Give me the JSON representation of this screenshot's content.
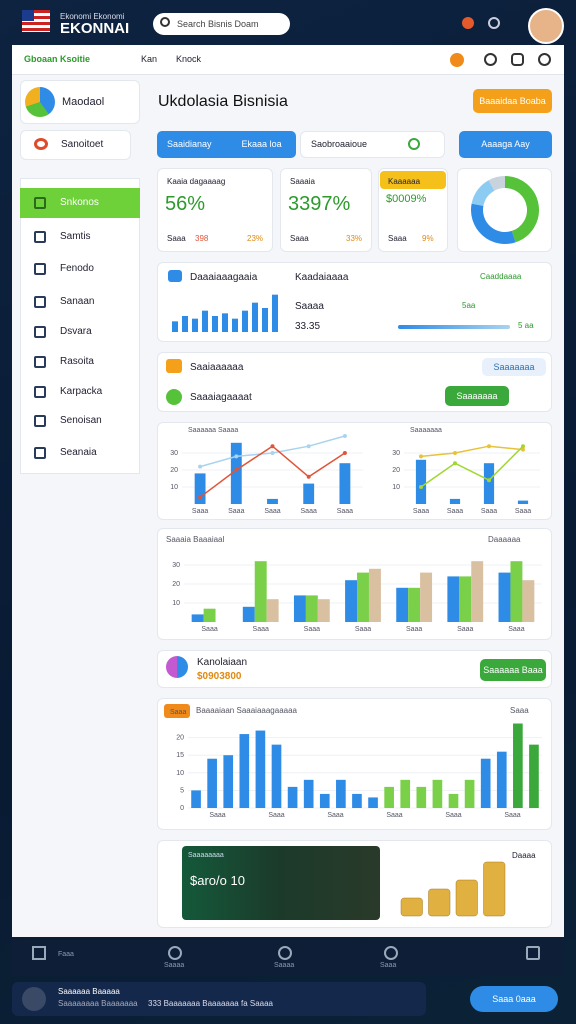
{
  "header": {
    "brand_top": "Ekonomi Ekonomi",
    "brand": "EKONNAI",
    "search": "Search Bisnis Doam"
  },
  "tabs": [
    "Gboaan Ksoitie",
    "Kan",
    "Knock"
  ],
  "sidebar": {
    "brand": "Maodaol",
    "account": "Sanoitoet",
    "menu": [
      "Snkonos",
      "Samtis",
      "Fenodo",
      "Sanaan",
      "Dsvara",
      "Rasoita",
      "Karpacka",
      "Senoisan",
      "Seanaia"
    ]
  },
  "main": {
    "title": "Ukdolasia Bisnisia",
    "action": "Baaaidaa Boaba",
    "tab": "Saaidianay",
    "tab_right": "Ekaaa loa",
    "search": "Saobroaaioue",
    "button": "Aaaaga Aay"
  },
  "stats": [
    {
      "label": "Kaaia dagaaaag",
      "value": "56%",
      "foot": "Saaa",
      "a": "398",
      "b": "23%"
    },
    {
      "label": "Saaaia",
      "value": "3397%",
      "foot": "Saaa",
      "a": "",
      "b": "33%"
    },
    {
      "label": "Kaaaaaa",
      "value": "$0009%",
      "foot": "Saaa",
      "a": "",
      "b": "9%"
    }
  ],
  "donut": {
    "type": "pie",
    "values": [
      45,
      33,
      14,
      8
    ],
    "colors": [
      "#56c23a",
      "#2e8be6",
      "#8ccbf2",
      "#c8d3de"
    ]
  },
  "overview": {
    "title": "Daaaiaaagaaia",
    "subtitle": "Kaadaiaaaa",
    "row1": "Saaaa",
    "row2": "33.35",
    "right": "Caaddaaaa",
    "right_value": "5aa",
    "progress_value": "5 aa",
    "chart": {
      "type": "bar",
      "values": [
        4,
        6,
        5,
        8,
        6,
        7,
        5,
        8,
        11,
        9,
        14
      ],
      "ylim": [
        0,
        15
      ],
      "color": "#2e8be6"
    }
  },
  "list": {
    "row1": "Saaiaaaaaa",
    "row1_button": "Saaaaaaa",
    "row2": "Saaaiagaaaat",
    "row2_button": "Saaaaaaa"
  },
  "combo": [
    {
      "type": "bar",
      "title": "Saaaaaa Saaaa",
      "ylim": [
        0,
        40
      ],
      "yticks": [
        10,
        20,
        30
      ],
      "values": [
        18,
        36,
        3,
        12,
        24
      ],
      "line": [
        4,
        20,
        34,
        16,
        30
      ],
      "trend": [
        22,
        28,
        30,
        34,
        40
      ],
      "color": "#2e8be6",
      "line_color": "#e0553a",
      "trend_color": "#a9d3ee",
      "categories": [
        "Saaa",
        "Saaa",
        "Saaa",
        "Saaa",
        "Saaa"
      ]
    },
    {
      "type": "bar",
      "title": "Saaaaaaa",
      "ylim": [
        0,
        40
      ],
      "yticks": [
        10,
        20,
        30
      ],
      "values": [
        26,
        3,
        24,
        2
      ],
      "line": [
        10,
        24,
        14,
        34
      ],
      "trend": [
        28,
        30,
        34,
        32
      ],
      "color": "#2e8be6",
      "line_color": "#a3d630",
      "trend_color": "#e8c23a",
      "categories": [
        "Saaa",
        "Saaa",
        "Saaa",
        "Saaa"
      ]
    }
  ],
  "grouped": {
    "type": "bar",
    "title": "Saaaia Baaaiaal",
    "right": "Daaaaaa",
    "ylim": [
      0,
      40
    ],
    "yticks": [
      10,
      20,
      30
    ],
    "categories": [
      "Saaa",
      "Saaa",
      "Saaa",
      "Saaa",
      "Saaa",
      "Saaa",
      "Saaa"
    ],
    "series": [
      {
        "color": "#2e8be6",
        "values": [
          4,
          8,
          14,
          22,
          18,
          24,
          26
        ]
      },
      {
        "color": "#7ad048",
        "values": [
          7,
          32,
          14,
          26,
          18,
          24,
          32
        ]
      },
      {
        "color": "#d8c0a0",
        "values": [
          0,
          12,
          12,
          28,
          26,
          32,
          22
        ]
      }
    ]
  },
  "finance": {
    "title": "Kanolaiaan",
    "value": "$0903800",
    "button": "Saaaaaa Baaa"
  },
  "revenue": {
    "type": "bar",
    "badge": "Saaa",
    "title": "Baaaaiaan Saaaiaaagaaaaa",
    "right": "Saaa",
    "ylim": [
      0,
      25
    ],
    "yticks": [
      0,
      5,
      10,
      15,
      20
    ],
    "values": [
      5,
      14,
      15,
      21,
      22,
      18,
      6,
      8,
      4,
      8,
      4,
      3,
      6,
      8,
      6,
      8,
      4,
      8,
      14,
      16,
      24,
      18
    ],
    "colors": [
      "#2e8be6",
      "#2e8be6",
      "#2e8be6",
      "#2e8be6",
      "#2e8be6",
      "#2e8be6",
      "#2e8be6",
      "#2e8be6",
      "#2e8be6",
      "#2e8be6",
      "#2e8be6",
      "#2e8be6",
      "#7ad048",
      "#7ad048",
      "#7ad048",
      "#7ad048",
      "#7ad048",
      "#7ad048",
      "#2e8be6",
      "#2e8be6",
      "#3aa83a",
      "#3aa83a"
    ],
    "categories": [
      "Saaa",
      "Saaa",
      "Saaa",
      "Saaa",
      "Saaa",
      "Saaa"
    ]
  },
  "promo": {
    "label": "Saaaaaaaa",
    "value": "$aro/o 10",
    "right": "Daaaa",
    "coins": {
      "type": "bar",
      "values": [
        2,
        3,
        4,
        6
      ],
      "color": "#e0b040"
    }
  },
  "bottom_nav": [
    "Faaa",
    "Saaaa",
    "Saaaa",
    "Saaa"
  ],
  "footer": {
    "title": "Saaaaaa Baaaaa",
    "subtitle": "Saaaaaaaa Baaaaaaa",
    "message": "333 Baaaaaaa Baaaaaaa fa Saaaa",
    "button": "Saaa 0aaa"
  }
}
